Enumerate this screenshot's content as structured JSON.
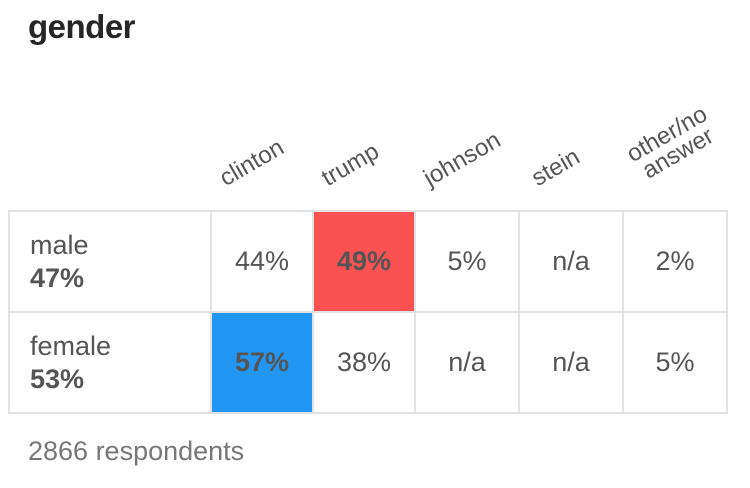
{
  "title": "gender",
  "footer": "2866 respondents",
  "colors": {
    "clinton_win": "#2196f3",
    "trump_win": "#fa5252",
    "grid_line": "#e3e3e3",
    "text": "#555555"
  },
  "chart_data": {
    "type": "table",
    "title": "gender",
    "columns": [
      "clinton",
      "trump",
      "johnson",
      "stein",
      "other/no answer"
    ],
    "rows": [
      {
        "label": "male",
        "share": "47%",
        "values": [
          "44%",
          "49%",
          "5%",
          "n/a",
          "2%"
        ],
        "leader": "trump"
      },
      {
        "label": "female",
        "share": "53%",
        "values": [
          "57%",
          "38%",
          "n/a",
          "n/a",
          "5%"
        ],
        "leader": "clinton"
      }
    ],
    "note": "2866 respondents"
  }
}
